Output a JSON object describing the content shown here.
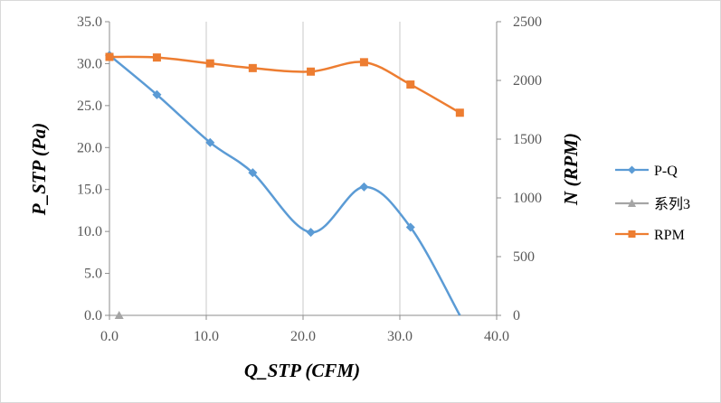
{
  "chart_data": {
    "type": "line",
    "xlabel": "Q_STP (CFM)",
    "ylabel": "P_STP (Pa)",
    "y2label": "N (RPM)",
    "xlim": [
      0,
      40
    ],
    "ylim": [
      0,
      35
    ],
    "y2lim": [
      0,
      2500
    ],
    "x_ticks": [
      "0.0",
      "10.0",
      "20.0",
      "30.0",
      "40.0"
    ],
    "y_ticks": [
      "0.0",
      "5.0",
      "10.0",
      "15.0",
      "20.0",
      "25.0",
      "30.0",
      "35.0"
    ],
    "y2_ticks": [
      "0",
      "500",
      "1000",
      "1500",
      "2000",
      "2500"
    ],
    "grid": "vertical",
    "legend_position": "right",
    "series": [
      {
        "name": "P-Q",
        "axis": "left",
        "color": "#5B9BD5",
        "marker": "diamond",
        "smooth": true,
        "x": [
          0.0,
          4.9,
          10.4,
          14.8,
          20.8,
          26.3,
          31.1,
          36.2
        ],
        "y": [
          31.0,
          26.3,
          20.6,
          17.0,
          9.9,
          15.3,
          10.5,
          0.0
        ],
        "marker_points": 7
      },
      {
        "name": "系列3",
        "axis": "left",
        "color": "#A5A5A5",
        "marker": "triangle",
        "x": [
          1.0
        ],
        "y": [
          0.0
        ]
      },
      {
        "name": "RPM",
        "axis": "right",
        "color": "#ED7D31",
        "marker": "square",
        "smooth": true,
        "x": [
          0.0,
          4.9,
          10.4,
          14.8,
          20.8,
          26.3,
          31.1,
          36.2
        ],
        "y": [
          2200,
          2195,
          2145,
          2105,
          2075,
          2155,
          1965,
          1725
        ]
      }
    ]
  }
}
